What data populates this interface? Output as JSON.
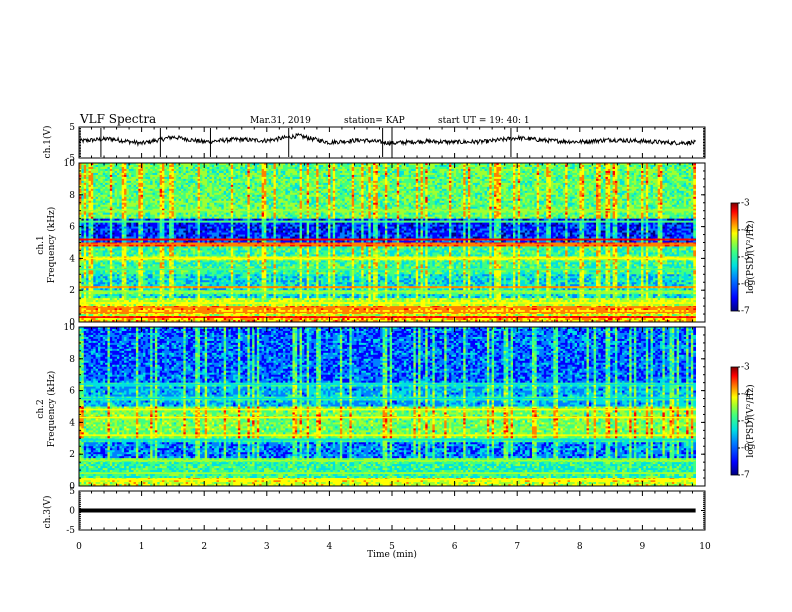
{
  "header": {
    "title": "VLF Spectra",
    "date": "Mar.31, 2019",
    "station": "station= KAP",
    "start": "start  UT =   19: 40: 1"
  },
  "colors": {
    "colormap": [
      "#00007f",
      "#0000ff",
      "#0080ff",
      "#00e0e0",
      "#40ff80",
      "#a0ff30",
      "#ffff00",
      "#ff8000",
      "#ff0000",
      "#7f0000"
    ],
    "trace": "#000000",
    "frame": "#000000"
  },
  "chart_data": [
    {
      "type": "line",
      "panel": "ch1-waveform",
      "ylabel": "ch.1(V)",
      "ylim": [
        -5,
        5
      ],
      "yticks": [
        "5",
        "-5"
      ],
      "xlim": [
        0,
        10
      ],
      "data_extent_min": 9.85,
      "description_series": {
        "x_min": [
          0,
          0.5,
          1,
          1.5,
          2,
          2.5,
          3,
          3.5,
          4,
          4.5,
          5,
          5.5,
          6,
          6.5,
          7,
          7.5,
          8,
          8.5,
          9,
          9.5,
          9.85
        ],
        "y_v": [
          0.5,
          1.2,
          -0.3,
          1.8,
          0.2,
          1.0,
          0.6,
          2.2,
          0.0,
          0.8,
          -0.2,
          0.4,
          0.1,
          0.3,
          1.5,
          0.6,
          0.2,
          0.9,
          0.4,
          -0.1,
          0.0
        ]
      }
    },
    {
      "type": "heatmap",
      "panel": "ch1-spectrogram",
      "ylabel": "ch.1\nFrequency (kHz)",
      "ylim": [
        0,
        10
      ],
      "yticks": [
        "0",
        "2",
        "4",
        "6",
        "8",
        "10"
      ],
      "xlim": [
        0,
        10
      ],
      "colorbar": {
        "label": "log(PSD)(V²/Hz)",
        "range": [
          -7,
          -3
        ],
        "ticks": [
          "-3",
          "-4",
          "-5",
          "-6",
          "-7"
        ]
      },
      "bands_khz": [
        {
          "f": 0.3,
          "level": -3.8
        },
        {
          "f": 0.6,
          "level": -4.2
        },
        {
          "f": 0.9,
          "level": -4.0
        },
        {
          "f": 1.2,
          "level": -4.6
        },
        {
          "f": 1.9,
          "level": -5.0
        },
        {
          "f": 2.2,
          "level": -4.2
        },
        {
          "f": 3.3,
          "level": -5.2
        },
        {
          "f": 4.0,
          "level": -4.6
        },
        {
          "f": 4.9,
          "level": -3.9
        },
        {
          "f": 5.2,
          "level": -3.6
        },
        {
          "f": 6.3,
          "level": -5.2
        },
        {
          "f": 7.0,
          "level": -5.0
        }
      ]
    },
    {
      "type": "heatmap",
      "panel": "ch2-spectrogram",
      "ylabel": "ch.2\nFrequency (kHz)",
      "ylim": [
        0,
        10
      ],
      "yticks": [
        "0",
        "2",
        "4",
        "6",
        "8",
        "10"
      ],
      "xlim": [
        0,
        10
      ],
      "colorbar": {
        "label": "log(PSD)(V²/Hz)",
        "range": [
          -7,
          -3
        ],
        "ticks": [
          "-3",
          "-4",
          "-5",
          "-6",
          "-7"
        ]
      },
      "bands_khz": [
        {
          "f": 0.4,
          "level": -4.4
        },
        {
          "f": 0.8,
          "level": -5.0
        },
        {
          "f": 1.6,
          "level": -5.0
        },
        {
          "f": 2.9,
          "level": -5.4
        },
        {
          "f": 3.2,
          "level": -4.6
        },
        {
          "f": 4.3,
          "level": -4.4
        },
        {
          "f": 4.8,
          "level": -4.6
        },
        {
          "f": 5.5,
          "level": -5.4
        },
        {
          "f": 6.4,
          "level": -5.5
        }
      ]
    },
    {
      "type": "line",
      "panel": "ch3-waveform",
      "ylabel": "ch.3(V)",
      "ylim": [
        -5,
        5
      ],
      "yticks": [
        "5",
        "0",
        "-5"
      ],
      "xlim": [
        0,
        10
      ],
      "constant_value_v": 0.0
    }
  ],
  "xaxis": {
    "label": "Time (min)",
    "ticks": [
      "0",
      "1",
      "2",
      "3",
      "4",
      "5",
      "6",
      "7",
      "8",
      "9",
      "10"
    ]
  }
}
